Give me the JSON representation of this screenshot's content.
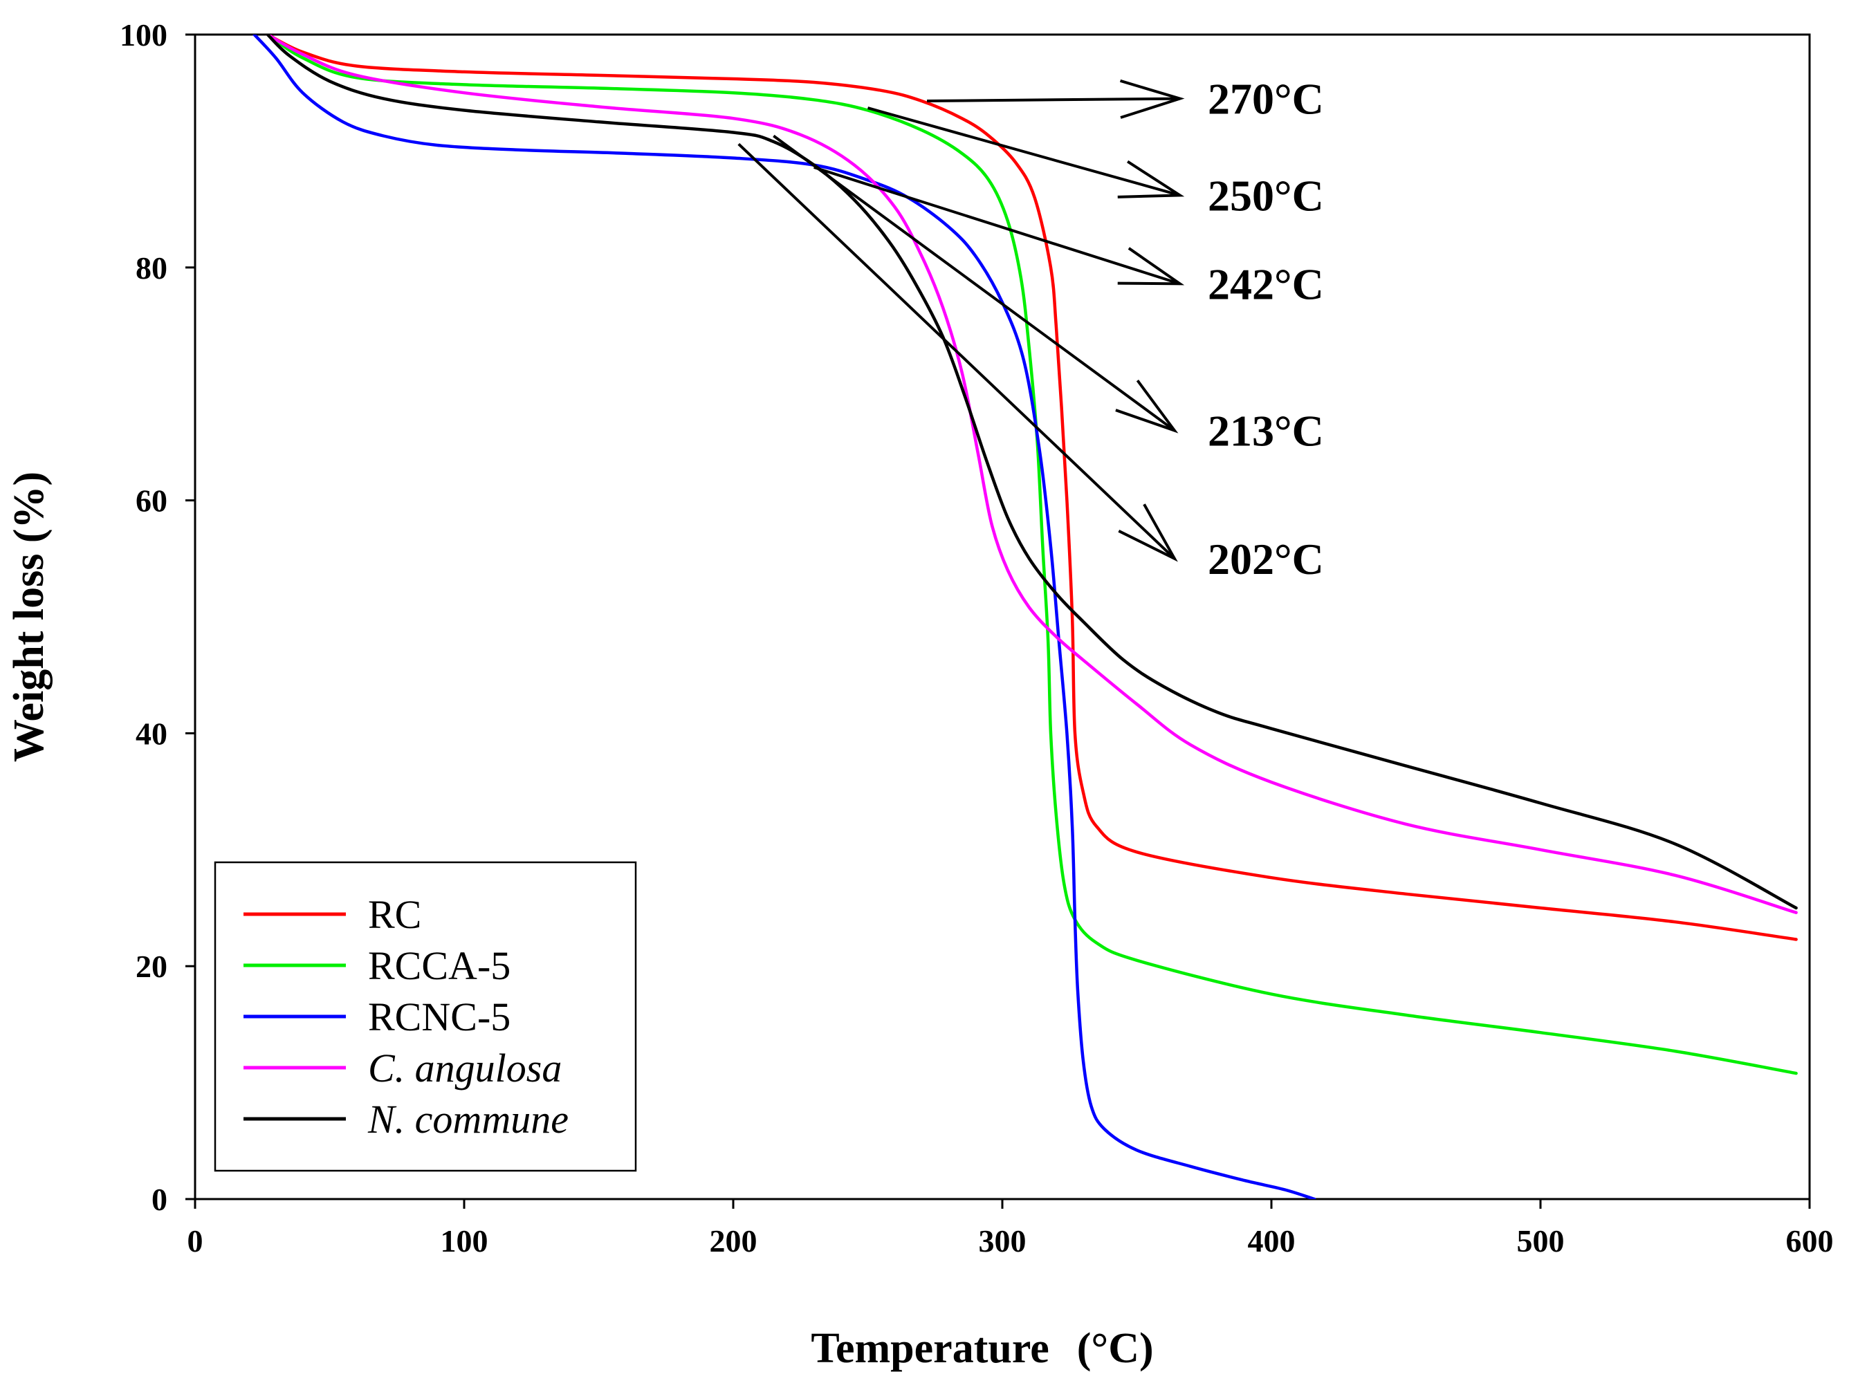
{
  "chart_data": {
    "type": "line",
    "title": "",
    "xlabel": "Temperature",
    "xlabel_unit": "(°C)",
    "ylabel": "Weight loss  (%)",
    "xlim": [
      0,
      600
    ],
    "ylim": [
      0,
      100
    ],
    "x_ticks": [
      "0",
      "100",
      "200",
      "300",
      "400",
      "500",
      "600"
    ],
    "y_ticks": [
      "0",
      "20",
      "40",
      "60",
      "80",
      "100"
    ],
    "grid": false,
    "legend_position": "bottom-left",
    "series": [
      {
        "name": "RC",
        "color": "#ff0000",
        "italic": false,
        "points": [
          [
            27,
            100
          ],
          [
            40,
            98.5
          ],
          [
            60,
            97.3
          ],
          [
            100,
            96.8
          ],
          [
            150,
            96.5
          ],
          [
            200,
            96.2
          ],
          [
            230,
            95.9
          ],
          [
            255,
            95.2
          ],
          [
            270,
            94.3
          ],
          [
            285,
            92.8
          ],
          [
            295,
            91.3
          ],
          [
            305,
            89
          ],
          [
            312,
            86
          ],
          [
            318,
            80
          ],
          [
            320,
            75
          ],
          [
            322,
            68
          ],
          [
            324,
            60
          ],
          [
            326,
            50
          ],
          [
            327,
            40
          ],
          [
            330,
            35
          ],
          [
            335,
            32
          ],
          [
            350,
            29.8
          ],
          [
            400,
            27.6
          ],
          [
            450,
            26.2
          ],
          [
            500,
            25
          ],
          [
            550,
            23.8
          ],
          [
            595,
            22.3
          ]
        ]
      },
      {
        "name": "RCCA-5",
        "color": "#00ee00",
        "italic": false,
        "points": [
          [
            27,
            100
          ],
          [
            40,
            98
          ],
          [
            60,
            96.3
          ],
          [
            100,
            95.7
          ],
          [
            150,
            95.4
          ],
          [
            200,
            95
          ],
          [
            230,
            94.4
          ],
          [
            250,
            93.5
          ],
          [
            270,
            91.8
          ],
          [
            285,
            89.8
          ],
          [
            295,
            87.5
          ],
          [
            302,
            84
          ],
          [
            307,
            79
          ],
          [
            310,
            73
          ],
          [
            313,
            65
          ],
          [
            315,
            56
          ],
          [
            317,
            48
          ],
          [
            318,
            40
          ],
          [
            320,
            33
          ],
          [
            323,
            27
          ],
          [
            327,
            24
          ],
          [
            335,
            22
          ],
          [
            350,
            20.5
          ],
          [
            400,
            17.6
          ],
          [
            450,
            15.8
          ],
          [
            500,
            14.3
          ],
          [
            550,
            12.7
          ],
          [
            595,
            10.8
          ]
        ]
      },
      {
        "name": "RCNC-5",
        "color": "#0000ff",
        "italic": false,
        "points": [
          [
            22,
            100
          ],
          [
            30,
            98
          ],
          [
            40,
            95
          ],
          [
            55,
            92.5
          ],
          [
            70,
            91.3
          ],
          [
            90,
            90.5
          ],
          [
            120,
            90.1
          ],
          [
            160,
            89.8
          ],
          [
            200,
            89.4
          ],
          [
            230,
            88.8
          ],
          [
            250,
            87.5
          ],
          [
            265,
            86
          ],
          [
            280,
            83.5
          ],
          [
            290,
            81
          ],
          [
            300,
            77
          ],
          [
            308,
            72
          ],
          [
            314,
            64
          ],
          [
            318,
            56
          ],
          [
            321,
            48
          ],
          [
            324,
            40
          ],
          [
            326,
            32
          ],
          [
            327,
            24
          ],
          [
            328,
            18
          ],
          [
            330,
            12
          ],
          [
            333,
            8
          ],
          [
            338,
            6
          ],
          [
            350,
            4.2
          ],
          [
            370,
            2.8
          ],
          [
            390,
            1.6
          ],
          [
            405,
            0.8
          ],
          [
            416,
            0
          ]
        ]
      },
      {
        "name": "C. angulosa",
        "color": "#ff00ff",
        "italic": true,
        "points": [
          [
            27,
            100
          ],
          [
            40,
            98.3
          ],
          [
            60,
            96.5
          ],
          [
            100,
            95
          ],
          [
            150,
            93.8
          ],
          [
            200,
            92.8
          ],
          [
            225,
            91.4
          ],
          [
            245,
            88.8
          ],
          [
            260,
            85.2
          ],
          [
            270,
            81
          ],
          [
            278,
            76.5
          ],
          [
            285,
            71
          ],
          [
            291,
            64
          ],
          [
            296,
            58
          ],
          [
            302,
            54
          ],
          [
            310,
            50.8
          ],
          [
            320,
            48.3
          ],
          [
            330,
            46.3
          ],
          [
            350,
            42.5
          ],
          [
            370,
            39
          ],
          [
            400,
            35.8
          ],
          [
            450,
            32.2
          ],
          [
            500,
            30
          ],
          [
            550,
            27.8
          ],
          [
            595,
            24.6
          ]
        ]
      },
      {
        "name": "N. commune",
        "color": "#000000",
        "italic": true,
        "points": [
          [
            27,
            100
          ],
          [
            35,
            98.2
          ],
          [
            50,
            96
          ],
          [
            70,
            94.5
          ],
          [
            100,
            93.5
          ],
          [
            150,
            92.5
          ],
          [
            200,
            91.6
          ],
          [
            215,
            90.8
          ],
          [
            230,
            88.8
          ],
          [
            245,
            85.8
          ],
          [
            258,
            82.2
          ],
          [
            268,
            78.5
          ],
          [
            278,
            74
          ],
          [
            286,
            69
          ],
          [
            294,
            63.5
          ],
          [
            302,
            58.5
          ],
          [
            310,
            55
          ],
          [
            320,
            52
          ],
          [
            330,
            49.6
          ],
          [
            345,
            46.3
          ],
          [
            360,
            44
          ],
          [
            380,
            41.8
          ],
          [
            400,
            40.4
          ],
          [
            450,
            37.2
          ],
          [
            500,
            34
          ],
          [
            550,
            30.5
          ],
          [
            595,
            25
          ]
        ]
      }
    ],
    "annotations": [
      {
        "label": "270°C",
        "from": [
          272,
          94.3
        ],
        "to": [
          366,
          94.5
        ]
      },
      {
        "label": "250°C",
        "from": [
          250,
          93.7
        ],
        "to": [
          366,
          86.2
        ]
      },
      {
        "label": "242°C",
        "from": [
          230,
          88.6
        ],
        "to": [
          366,
          78.6
        ]
      },
      {
        "label": "213°C",
        "from": [
          215,
          91.3
        ],
        "to": [
          364,
          66
        ]
      },
      {
        "label": "202°C",
        "from": [
          202,
          90.6
        ],
        "to": [
          364,
          55
        ]
      }
    ]
  }
}
